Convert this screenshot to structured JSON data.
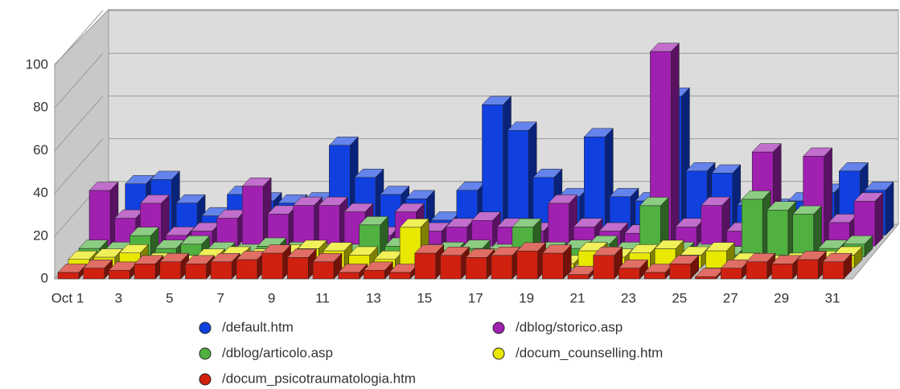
{
  "chart_data": {
    "type": "bar3d",
    "categories": [
      "Oct 1",
      null,
      "3",
      null,
      "5",
      null,
      "7",
      null,
      "9",
      null,
      "11",
      null,
      "13",
      null,
      "15",
      null,
      "17",
      null,
      "19",
      null,
      "21",
      null,
      "23",
      null,
      "25",
      null,
      "27",
      null,
      "29",
      null,
      "31"
    ],
    "ylim": [
      0,
      100
    ],
    "yticks": [
      0,
      20,
      40,
      60,
      80,
      100
    ],
    "grid": true,
    "legend": "bottom",
    "series": [
      {
        "name": "/default.htm",
        "color": "#1040e0",
        "values": [
          2,
          24,
          26,
          15,
          9,
          19,
          16,
          15,
          16,
          42,
          27,
          19,
          17,
          7,
          21,
          61,
          49,
          27,
          18,
          46,
          18,
          16,
          65,
          30,
          29,
          14,
          13,
          16,
          20,
          30,
          21
        ]
      },
      {
        "name": "/dblog/storico.asp",
        "color": "#a020b0",
        "values": [
          26,
          13,
          20,
          5,
          7,
          13,
          28,
          15,
          19,
          19,
          16,
          5,
          16,
          7,
          9,
          12,
          9,
          7,
          20,
          9,
          7,
          6,
          91,
          9,
          19,
          7,
          44,
          2,
          42,
          11,
          21
        ]
      },
      {
        "name": "/dblog/articolo.asp",
        "color": "#50b040",
        "values": [
          4,
          3,
          10,
          4,
          6,
          3,
          2,
          5,
          3,
          2,
          2,
          15,
          5,
          2,
          3,
          4,
          2,
          14,
          3,
          4,
          6,
          3,
          24,
          3,
          2,
          1,
          27,
          22,
          20,
          4,
          6
        ]
      },
      {
        "name": "/docum_counselling.htm",
        "color": "#e8e800",
        "values": [
          4,
          5,
          7,
          3,
          2,
          5,
          6,
          5,
          7,
          9,
          8,
          6,
          4,
          19,
          3,
          4,
          5,
          4,
          3,
          2,
          8,
          5,
          7,
          9,
          6,
          8,
          3,
          2,
          3,
          4,
          6
        ]
      },
      {
        "name": "/docum_psicotraumatologia.htm",
        "color": "#d02010",
        "values": [
          3,
          5,
          4,
          7,
          8,
          7,
          8,
          9,
          12,
          10,
          8,
          3,
          4,
          3,
          12,
          11,
          10,
          11,
          13,
          12,
          2,
          11,
          5,
          3,
          7,
          1,
          5,
          8,
          7,
          9,
          8
        ]
      }
    ]
  }
}
